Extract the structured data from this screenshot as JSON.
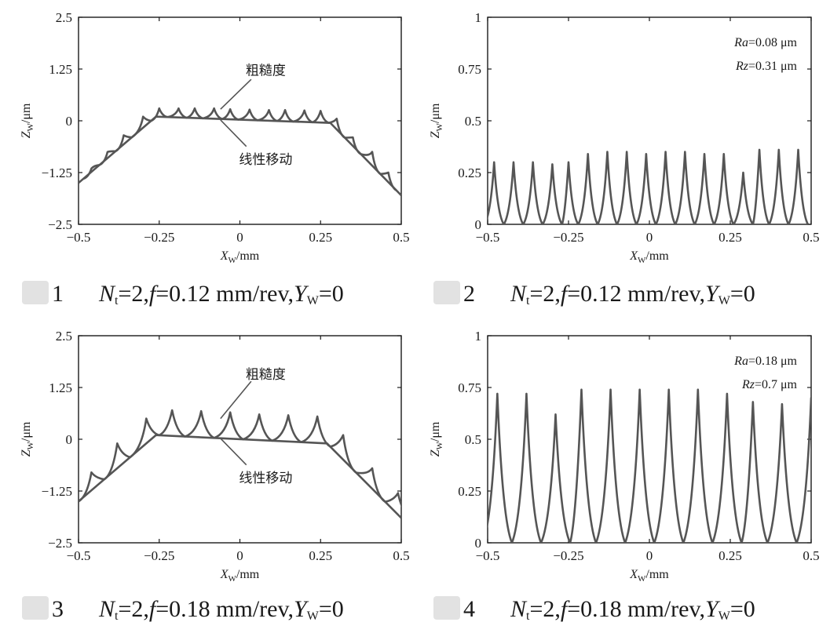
{
  "figures": [
    {
      "caption": {
        "num": "1",
        "nt_sym": "N",
        "nt_sub": "t",
        "nt_val": "=2,",
        "f_sym": "f",
        "f_val": "=0.12 mm/rev,",
        "y_sym": "Y",
        "y_sub": "W",
        "y_val": "=0"
      },
      "chart_data": {
        "type": "line",
        "xlim": [
          -0.5,
          0.5
        ],
        "ylim": [
          -2.5,
          2.5
        ],
        "xticks": [
          "−0.5",
          "−0.25",
          "0",
          "0.25",
          "0.5"
        ],
        "yticks": [
          "2.5",
          "1.25",
          "0",
          "−1.25",
          "−2.5"
        ],
        "xlabel_main": "X",
        "xlabel_sub": "W",
        "xlabel_unit": "/mm",
        "ylabel_main": "Z",
        "ylabel_sub": "W",
        "ylabel_unit": "/μm",
        "annotations": {
          "roughness": "粗糙度",
          "linear": "线性移动"
        },
        "series": [
          {
            "name": "线性移动",
            "x": [
              -0.5,
              -0.26,
              0.28,
              0.5
            ],
            "y": [
              -1.5,
              0.1,
              -0.05,
              -1.8
            ]
          },
          {
            "name": "粗糙度",
            "kind": "cusps",
            "peaks": [
              [
                -0.46,
                -1.15
              ],
              [
                -0.41,
                -0.75
              ],
              [
                -0.36,
                -0.35
              ],
              [
                -0.3,
                0.1
              ],
              [
                -0.25,
                0.3
              ],
              [
                -0.19,
                0.3
              ],
              [
                -0.14,
                0.3
              ],
              [
                -0.08,
                0.3
              ],
              [
                -0.03,
                0.28
              ],
              [
                0.03,
                0.27
              ],
              [
                0.09,
                0.26
              ],
              [
                0.14,
                0.26
              ],
              [
                0.2,
                0.25
              ],
              [
                0.25,
                0.24
              ],
              [
                0.3,
                0.05
              ],
              [
                0.35,
                -0.4
              ],
              [
                0.41,
                -0.75
              ],
              [
                0.46,
                -1.25
              ]
            ]
          }
        ]
      }
    },
    {
      "caption": {
        "num": "2",
        "nt_sym": "N",
        "nt_sub": "t",
        "nt_val": "=2,",
        "f_sym": "f",
        "f_val": "=0.12 mm/rev,",
        "y_sym": "Y",
        "y_sub": "W",
        "y_val": "=0"
      },
      "chart_data": {
        "type": "line",
        "xlim": [
          -0.5,
          0.5
        ],
        "ylim": [
          0,
          1
        ],
        "xticks": [
          "−0.5",
          "−0.25",
          "0",
          "0.25",
          "0.5"
        ],
        "yticks": [
          "1",
          "0.75",
          "0.5",
          "0.25",
          "0"
        ],
        "xlabel_main": "X",
        "xlabel_sub": "W",
        "xlabel_unit": "/mm",
        "ylabel_main": "Z",
        "ylabel_sub": "W",
        "ylabel_unit": "/μm",
        "stats": {
          "ra_sym": "Ra",
          "ra_val": "=0.08 μm",
          "rz_sym": "Rz",
          "rz_val": "=0.31 μm"
        },
        "series": [
          {
            "name": "roughness",
            "kind": "cusps",
            "peaks": [
              [
                -0.48,
                0.3
              ],
              [
                -0.42,
                0.3
              ],
              [
                -0.36,
                0.3
              ],
              [
                -0.3,
                0.29
              ],
              [
                -0.25,
                0.3
              ],
              [
                -0.19,
                0.34
              ],
              [
                -0.13,
                0.35
              ],
              [
                -0.07,
                0.35
              ],
              [
                -0.01,
                0.34
              ],
              [
                0.05,
                0.35
              ],
              [
                0.11,
                0.35
              ],
              [
                0.17,
                0.34
              ],
              [
                0.23,
                0.34
              ],
              [
                0.29,
                0.25
              ],
              [
                0.34,
                0.36
              ],
              [
                0.4,
                0.36
              ],
              [
                0.46,
                0.36
              ]
            ]
          }
        ]
      }
    },
    {
      "caption": {
        "num": "3",
        "nt_sym": "N",
        "nt_sub": "t",
        "nt_val": "=2,",
        "f_sym": "f",
        "f_val": "=0.18 mm/rev,",
        "y_sym": "Y",
        "y_sub": "W",
        "y_val": "=0"
      },
      "chart_data": {
        "type": "line",
        "xlim": [
          -0.5,
          0.5
        ],
        "ylim": [
          -2.5,
          2.5
        ],
        "xticks": [
          "−0.5",
          "−0.25",
          "0",
          "0.25",
          "0.5"
        ],
        "yticks": [
          "2.5",
          "1.25",
          "0",
          "−1.25",
          "−2.5"
        ],
        "xlabel_main": "X",
        "xlabel_sub": "W",
        "xlabel_unit": "/mm",
        "ylabel_main": "Z",
        "ylabel_sub": "W",
        "ylabel_unit": "/μm",
        "annotations": {
          "roughness": "粗糙度",
          "linear": "线性移动"
        },
        "series": [
          {
            "name": "线性移动",
            "x": [
              -0.5,
              -0.26,
              0.27,
              0.5
            ],
            "y": [
              -1.5,
              0.1,
              -0.1,
              -1.9
            ]
          },
          {
            "name": "粗糙度",
            "kind": "cusps",
            "peaks": [
              [
                -0.46,
                -0.8
              ],
              [
                -0.38,
                -0.1
              ],
              [
                -0.29,
                0.5
              ],
              [
                -0.21,
                0.7
              ],
              [
                -0.12,
                0.68
              ],
              [
                -0.03,
                0.65
              ],
              [
                0.06,
                0.6
              ],
              [
                0.15,
                0.58
              ],
              [
                0.24,
                0.55
              ],
              [
                0.32,
                0.1
              ],
              [
                0.41,
                -0.7
              ],
              [
                0.49,
                -1.3
              ]
            ]
          }
        ]
      }
    },
    {
      "caption": {
        "num": "4",
        "nt_sym": "N",
        "nt_sub": "t",
        "nt_val": "=2,",
        "f_sym": "f",
        "f_val": "=0.18 mm/rev,",
        "y_sym": "Y",
        "y_sub": "W",
        "y_val": "=0"
      },
      "chart_data": {
        "type": "line",
        "xlim": [
          -0.5,
          0.5
        ],
        "ylim": [
          0,
          1
        ],
        "xticks": [
          "−0.5",
          "−0.25",
          "0",
          "0.25",
          "0.5"
        ],
        "yticks": [
          "1",
          "0.75",
          "0.5",
          "0.25",
          "0"
        ],
        "xlabel_main": "X",
        "xlabel_sub": "W",
        "xlabel_unit": "/mm",
        "ylabel_main": "Z",
        "ylabel_sub": "W",
        "ylabel_unit": "/μm",
        "stats": {
          "ra_sym": "Ra",
          "ra_val": "=0.18 μm",
          "rz_sym": "Rz",
          "rz_val": "=0.7 μm"
        },
        "series": [
          {
            "name": "roughness",
            "kind": "cusps",
            "peaks": [
              [
                -0.47,
                0.72
              ],
              [
                -0.38,
                0.72
              ],
              [
                -0.29,
                0.62
              ],
              [
                -0.21,
                0.74
              ],
              [
                -0.12,
                0.74
              ],
              [
                -0.03,
                0.74
              ],
              [
                0.06,
                0.74
              ],
              [
                0.15,
                0.74
              ],
              [
                0.24,
                0.72
              ],
              [
                0.32,
                0.68
              ],
              [
                0.41,
                0.67
              ],
              [
                0.5,
                0.7
              ]
            ]
          }
        ]
      }
    }
  ],
  "colors": {
    "line": "#555555",
    "axis": "#1a1a1a"
  }
}
